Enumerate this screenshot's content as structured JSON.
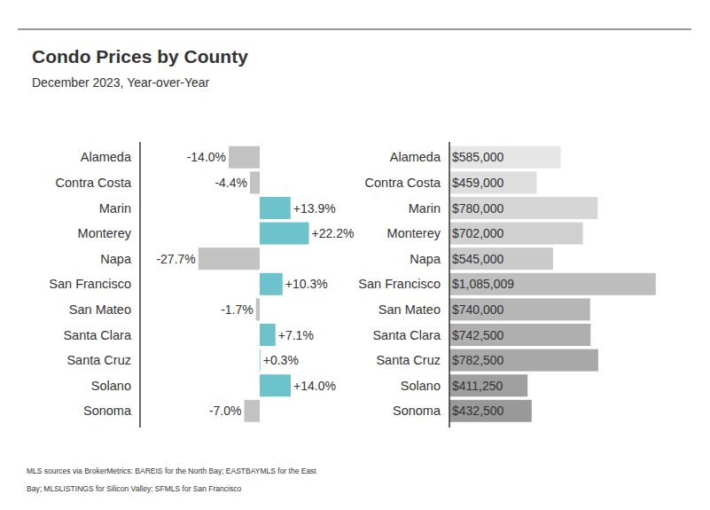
{
  "chart_data": [
    {
      "type": "bar",
      "title": "Condo Prices by County",
      "subtitle": "December 2023, Year-over-Year",
      "orientation": "horizontal",
      "categories": [
        "Alameda",
        "Contra Costa",
        "Marin",
        "Monterey",
        "Napa",
        "San Francisco",
        "San Mateo",
        "Santa Clara",
        "Santa Cruz",
        "Solano",
        "Sonoma"
      ],
      "values": [
        -14.0,
        -4.4,
        13.9,
        22.2,
        -27.7,
        10.3,
        -1.7,
        7.1,
        0.3,
        14.0,
        -7.0
      ],
      "value_labels": [
        "-14.0%",
        "-4.4%",
        "+13.9%",
        "+22.2%",
        "-27.7%",
        "+10.3%",
        "-1.7%",
        "+7.1%",
        "+0.3%",
        "+14.0%",
        "-7.0%"
      ],
      "colors": [
        "#c2c2c2",
        "#c2c2c2",
        "#6cc3cc",
        "#6cc3cc",
        "#c2c2c2",
        "#6cc3cc",
        "#c2c2c2",
        "#6cc3cc",
        "#6cc3cc",
        "#6cc3cc",
        "#c2c2c2"
      ],
      "xlim": [
        -54,
        50
      ],
      "data_labels": true,
      "tick_labels": "y",
      "source": [
        "MLS sources via BrokerMetrics: BAREIS for the North Bay; EASTBAYMLS for the East",
        "Bay; MLSLISTINGS for Silicon Valley; SFMLS for San Francisco"
      ]
    },
    {
      "type": "bar",
      "orientation": "horizontal",
      "categories": [
        "Alameda",
        "Contra Costa",
        "Marin",
        "Monterey",
        "Napa",
        "San Francisco",
        "San Mateo",
        "Santa Clara",
        "Santa Cruz",
        "Solano",
        "Sonoma"
      ],
      "values": [
        585000,
        459000,
        780000,
        702000,
        545000,
        1085009,
        740000,
        742500,
        782500,
        411250,
        432500
      ],
      "value_labels": [
        "$585,000",
        "$459,000",
        "$780,000",
        "$702,000",
        "$545,000",
        "$1,085,009",
        "$740,000",
        "$742,500",
        "$782,500",
        "$411,250",
        "$432,500"
      ],
      "colors": [
        "#e6e6e6",
        "#dedede",
        "#d6d6d6",
        "#d0d0d0",
        "#cacaca",
        "#bebebe",
        "#b6b6b6",
        "#afafaf",
        "#a8a8a8",
        "#9f9f9f",
        "#999999"
      ],
      "xlim": [
        0,
        1100000
      ],
      "data_labels": true,
      "tick_labels": "y"
    }
  ]
}
